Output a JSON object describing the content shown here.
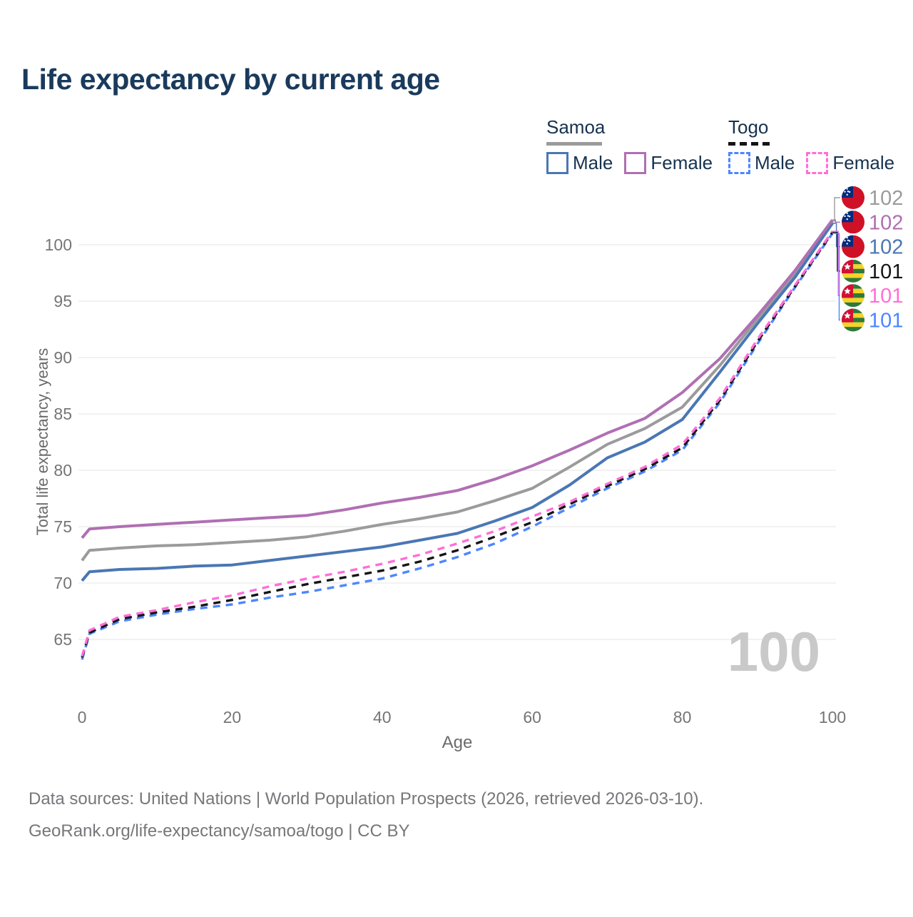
{
  "title": "Life expectancy by current age",
  "legend": {
    "groups": [
      {
        "label": "Samoa",
        "line_style": "solid",
        "items": [
          {
            "label": "Male"
          },
          {
            "label": "Female"
          }
        ]
      },
      {
        "label": "Togo",
        "line_style": "dashed",
        "items": [
          {
            "label": "Male"
          },
          {
            "label": "Female"
          }
        ]
      }
    ]
  },
  "watermark": "100",
  "footer": {
    "line1": "Data sources: United Nations | World Population Prospects (2026, retrieved 2026-03-10).",
    "line2": "GeoRank.org/life-expectancy/samoa/togo | CC BY"
  },
  "colors": {
    "title": "#1a3a5c",
    "legend_text": "#16324f",
    "tick_label": "#757575",
    "axis_label": "#6b6b6b",
    "gridline": "#e9e9e9",
    "watermark": "#c9c9c9",
    "footer_text": "#75777a",
    "samoa_both": "#9b9b9b",
    "samoa_female": "#b06fb3",
    "samoa_male": "#4a77b4",
    "togo_both": "#141414",
    "togo_female": "#ff6ed8",
    "togo_male": "#4d86ff",
    "samoa_flag_red": "#ce1126",
    "samoa_flag_blue": "#002b7f",
    "togo_flag_green": "#2d7a3a",
    "togo_flag_yellow": "#f5d328",
    "togo_flag_red": "#d21034"
  },
  "chart_data": {
    "type": "line",
    "title": "Life expectancy by current age",
    "xlabel": "Age",
    "ylabel": "Total life expectancy, years",
    "xlim": [
      0,
      100
    ],
    "ylim": [
      62,
      104
    ],
    "xticks": [
      0,
      20,
      40,
      60,
      80,
      100
    ],
    "yticks": [
      65,
      70,
      75,
      80,
      85,
      90,
      95,
      100
    ],
    "grid": "horizontal",
    "legend_position": "top-right",
    "x": [
      0,
      1,
      5,
      10,
      15,
      20,
      25,
      30,
      35,
      40,
      45,
      50,
      55,
      60,
      65,
      70,
      75,
      80,
      85,
      90,
      95,
      100
    ],
    "series": [
      {
        "name": "Samoa Both sexes",
        "country": "Samoa",
        "sex": "both",
        "color": "#9b9b9b",
        "dash": false,
        "end_label": "102",
        "flag": "samoa",
        "values": [
          72.0,
          72.9,
          73.1,
          73.3,
          73.4,
          73.6,
          73.8,
          74.1,
          74.6,
          75.2,
          75.7,
          76.3,
          77.3,
          78.4,
          80.3,
          82.3,
          83.7,
          85.6,
          89.3,
          93.4,
          97.4,
          102.1
        ]
      },
      {
        "name": "Samoa Female",
        "country": "Samoa",
        "sex": "female",
        "color": "#b06fb3",
        "dash": false,
        "end_label": "102",
        "flag": "samoa",
        "values": [
          74.0,
          74.8,
          75.0,
          75.2,
          75.4,
          75.6,
          75.8,
          76.0,
          76.5,
          77.1,
          77.6,
          78.2,
          79.2,
          80.4,
          81.8,
          83.3,
          84.6,
          86.9,
          89.9,
          93.7,
          97.7,
          102.2
        ]
      },
      {
        "name": "Samoa Male",
        "country": "Samoa",
        "sex": "male",
        "color": "#4a77b4",
        "dash": false,
        "end_label": "102",
        "flag": "samoa",
        "values": [
          70.2,
          71.0,
          71.2,
          71.3,
          71.5,
          71.6,
          72.0,
          72.4,
          72.8,
          73.2,
          73.8,
          74.4,
          75.5,
          76.7,
          78.7,
          81.1,
          82.5,
          84.5,
          88.7,
          93.0,
          97.1,
          101.9
        ]
      },
      {
        "name": "Togo Both sexes",
        "country": "Togo",
        "sex": "both",
        "color": "#141414",
        "dash": true,
        "end_label": "101",
        "flag": "togo",
        "values": [
          63.4,
          65.6,
          66.8,
          67.4,
          67.9,
          68.5,
          69.2,
          69.9,
          70.5,
          71.1,
          71.9,
          72.9,
          74.1,
          75.4,
          77.0,
          78.6,
          80.1,
          82.0,
          86.2,
          91.4,
          96.3,
          101.1
        ]
      },
      {
        "name": "Togo Female",
        "country": "Togo",
        "sex": "female",
        "color": "#ff6ed8",
        "dash": true,
        "end_label": "101",
        "flag": "togo",
        "values": [
          63.5,
          65.8,
          67.0,
          67.6,
          68.3,
          68.9,
          69.7,
          70.4,
          71.0,
          71.7,
          72.5,
          73.5,
          74.6,
          75.9,
          77.2,
          78.8,
          80.3,
          82.3,
          86.4,
          91.6,
          96.4,
          101.2
        ]
      },
      {
        "name": "Togo Male",
        "country": "Togo",
        "sex": "male",
        "color": "#4d86ff",
        "dash": true,
        "end_label": "101",
        "flag": "togo",
        "values": [
          63.2,
          65.5,
          66.6,
          67.2,
          67.7,
          68.1,
          68.7,
          69.2,
          69.8,
          70.4,
          71.3,
          72.3,
          73.5,
          75.0,
          76.7,
          78.4,
          79.9,
          81.8,
          86.0,
          91.2,
          96.2,
          101.0
        ]
      }
    ],
    "end_labels_top_to_bottom": [
      "102",
      "102",
      "102",
      "101",
      "101",
      "101"
    ],
    "watermark_age": "100"
  }
}
